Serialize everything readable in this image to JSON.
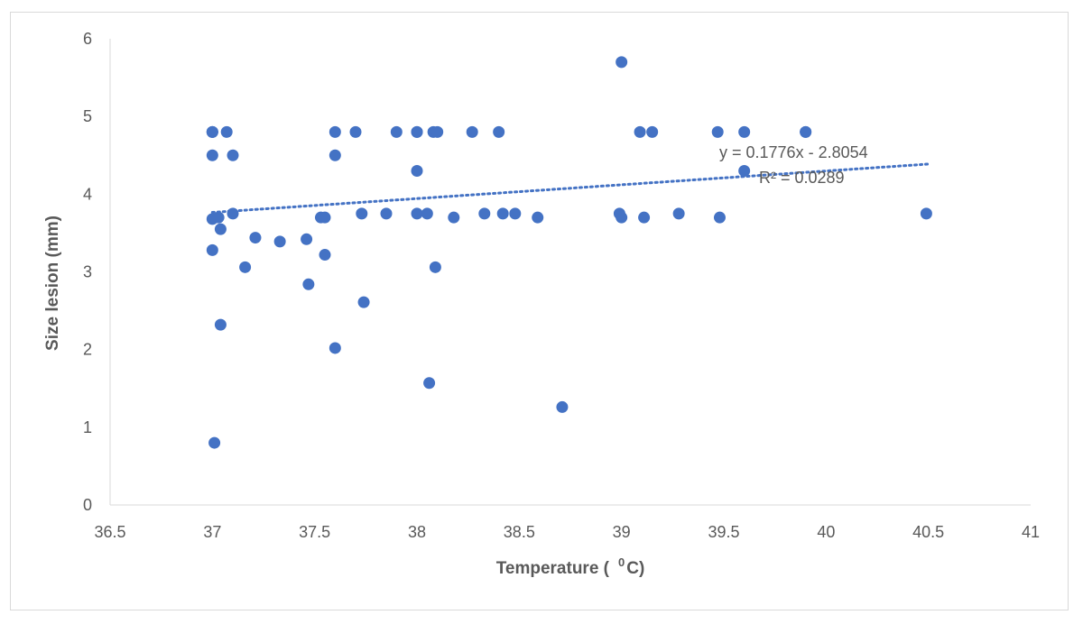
{
  "chart_data": {
    "type": "scatter",
    "title": "",
    "xlabel": "Temperature (",
    "xlabel_sup": "0",
    "xlabel_suffix": "C)",
    "ylabel": "Size lesion (mm)",
    "xlim": [
      36.5,
      41
    ],
    "ylim": [
      0,
      6
    ],
    "x_ticks": [
      "36.5",
      "37",
      "37.5",
      "38",
      "38.5",
      "39",
      "39.5",
      "40",
      "40.5",
      "41"
    ],
    "y_ticks": [
      "0",
      "1",
      "2",
      "3",
      "4",
      "5",
      "6"
    ],
    "grid": false,
    "legend": "none",
    "marker_color": "#4472c4",
    "series": [
      {
        "points": [
          [
            37.0,
            4.8
          ],
          [
            37.0,
            4.8
          ],
          [
            37.0,
            4.8
          ],
          [
            37.07,
            4.8
          ],
          [
            37.0,
            4.5
          ],
          [
            37.1,
            4.5
          ],
          [
            37.0,
            3.68
          ],
          [
            37.03,
            3.7
          ],
          [
            37.1,
            3.75
          ],
          [
            37.04,
            3.55
          ],
          [
            37.0,
            3.28
          ],
          [
            37.16,
            3.06
          ],
          [
            37.21,
            3.44
          ],
          [
            37.33,
            3.39
          ],
          [
            37.46,
            3.42
          ],
          [
            37.55,
            3.22
          ],
          [
            37.47,
            2.84
          ],
          [
            37.04,
            2.32
          ],
          [
            37.01,
            0.8
          ],
          [
            37.6,
            2.02
          ],
          [
            37.74,
            2.61
          ],
          [
            37.53,
            3.7
          ],
          [
            37.55,
            3.7
          ],
          [
            37.6,
            4.8
          ],
          [
            37.6,
            4.5
          ],
          [
            37.7,
            4.8
          ],
          [
            37.73,
            3.75
          ],
          [
            37.85,
            3.75
          ],
          [
            37.9,
            4.8
          ],
          [
            38.0,
            4.8
          ],
          [
            38.0,
            4.8
          ],
          [
            38.0,
            4.3
          ],
          [
            38.0,
            3.75
          ],
          [
            38.05,
            3.75
          ],
          [
            38.06,
            1.57
          ],
          [
            38.08,
            4.8
          ],
          [
            38.1,
            4.8
          ],
          [
            38.09,
            3.06
          ],
          [
            38.18,
            3.7
          ],
          [
            38.27,
            4.8
          ],
          [
            38.33,
            3.75
          ],
          [
            38.4,
            4.8
          ],
          [
            38.42,
            3.75
          ],
          [
            38.48,
            3.75
          ],
          [
            38.59,
            3.7
          ],
          [
            38.71,
            1.26
          ],
          [
            39.0,
            5.7
          ],
          [
            38.99,
            3.75
          ],
          [
            39.0,
            3.7
          ],
          [
            39.09,
            4.8
          ],
          [
            39.15,
            4.8
          ],
          [
            39.11,
            3.7
          ],
          [
            39.28,
            3.75
          ],
          [
            39.47,
            4.8
          ],
          [
            39.48,
            3.7
          ],
          [
            39.6,
            4.8
          ],
          [
            39.6,
            4.3
          ],
          [
            39.9,
            4.8
          ],
          [
            39.9,
            4.8
          ],
          [
            40.49,
            3.75
          ]
        ]
      }
    ],
    "trendline": {
      "type": "linear",
      "slope": 0.1776,
      "intercept": -2.8054,
      "x_range": [
        37.0,
        40.5
      ],
      "style": "dotted",
      "equation_label": "y = 0.1776x - 2.8054",
      "r2_label": "R² = 0.0289"
    }
  }
}
